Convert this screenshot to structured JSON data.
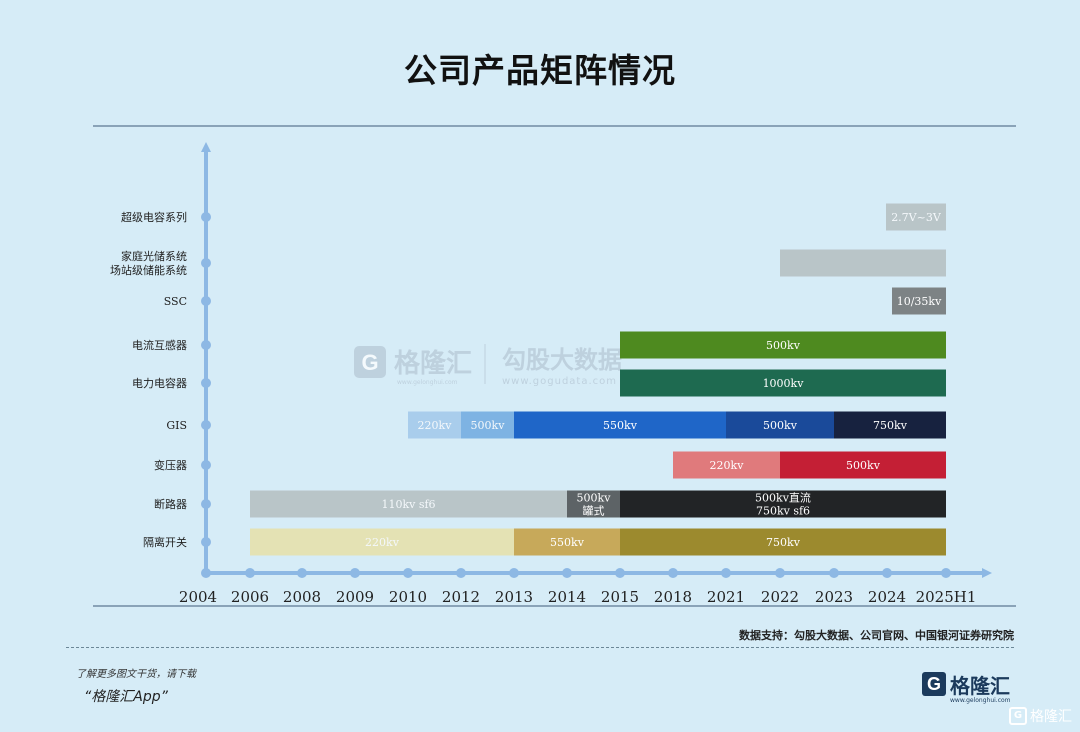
{
  "page": {
    "title": "公司产品矩阵情况"
  },
  "chart_data": {
    "type": "timeline-bar",
    "title": "公司产品矩阵情况",
    "x_ticks": [
      "2004",
      "2006",
      "2008",
      "2009",
      "2010",
      "2012",
      "2013",
      "2014",
      "2015",
      "2018",
      "2021",
      "2022",
      "2023",
      "2024",
      "2025H1"
    ],
    "rows": [
      {
        "label": [
          "超级电容系列"
        ],
        "segments": [
          {
            "start": "2024",
            "end": "2025H1",
            "label": "2.7V~3V",
            "color": "#b9c5c8"
          }
        ]
      },
      {
        "label": [
          "家庭光储系统",
          "场站级储能系统"
        ],
        "segments": [
          {
            "start": "2022",
            "end": "2025H1",
            "label": "",
            "color": "#b9c5c8"
          }
        ]
      },
      {
        "label": [
          "SSC"
        ],
        "segments": [
          {
            "start": "2024",
            "end": "2025H1",
            "label": "10/35kv",
            "color": "#7d8385"
          }
        ]
      },
      {
        "label": [
          "电流互感器"
        ],
        "segments": [
          {
            "start": "2015",
            "end": "2025H1",
            "label": "500kv",
            "color": "#4e8a1f"
          }
        ]
      },
      {
        "label": [
          "电力电容器"
        ],
        "segments": [
          {
            "start": "2015",
            "end": "2025H1",
            "label": "1000kv",
            "color": "#1e6a50"
          }
        ]
      },
      {
        "label": [
          "GIS"
        ],
        "segments": [
          {
            "start": "2010",
            "end": "2012",
            "label": "220kv",
            "color": "#a9cdec"
          },
          {
            "start": "2012",
            "end": "2013",
            "label": "500kv",
            "color": "#7eb3e3"
          },
          {
            "start": "2013",
            "end": "2021",
            "label": "550kv",
            "color": "#1f66c8"
          },
          {
            "start": "2021",
            "end": "2023",
            "label": "500kv",
            "color": "#1a4a9a"
          },
          {
            "start": "2023",
            "end": "2025H1",
            "label": "750kv",
            "color": "#17223f"
          }
        ]
      },
      {
        "label": [
          "变压器"
        ],
        "segments": [
          {
            "start": "2018",
            "end": "2022",
            "label": "220kv",
            "color": "#e07a7c"
          },
          {
            "start": "2022",
            "end": "2025H1",
            "label": "500kv",
            "color": "#c41f35"
          }
        ]
      },
      {
        "label": [
          "断路器"
        ],
        "segments": [
          {
            "start": "2006",
            "end": "2014",
            "label": "110kv sf6",
            "color": "#b9c5c8"
          },
          {
            "start": "2014",
            "end": "2015",
            "label": "500kv\n罐式",
            "color": "#5d6366"
          },
          {
            "start": "2015",
            "end": "2025H1",
            "label": "500kv直流\n750kv sf6",
            "color": "#222426"
          }
        ]
      },
      {
        "label": [
          "隔离开关"
        ],
        "segments": [
          {
            "start": "2006",
            "end": "2013",
            "label": "220kv",
            "color": "#e4e2b4"
          },
          {
            "start": "2013",
            "end": "2015",
            "label": "550kv",
            "color": "#c7a95a"
          },
          {
            "start": "2015",
            "end": "2025H1",
            "label": "750kv",
            "color": "#9c8a2e"
          }
        ]
      }
    ]
  },
  "watermark": {
    "logo": "G",
    "brand": "格隆汇",
    "url": "www.gelonghui.com",
    "data_brand": "勾股大数据",
    "data_url": "www.gogudata.com"
  },
  "source": "数据支持：勾股大数据、公司官网、中国银河证券研究院",
  "footer": {
    "note": "了解更多图文干货，请下载",
    "app": "“格隆汇App”"
  },
  "brand": {
    "logo": "G",
    "name": "格隆汇",
    "url": "www.gelonghui.com"
  },
  "corner": {
    "logo": "G",
    "name": "格隆汇"
  }
}
